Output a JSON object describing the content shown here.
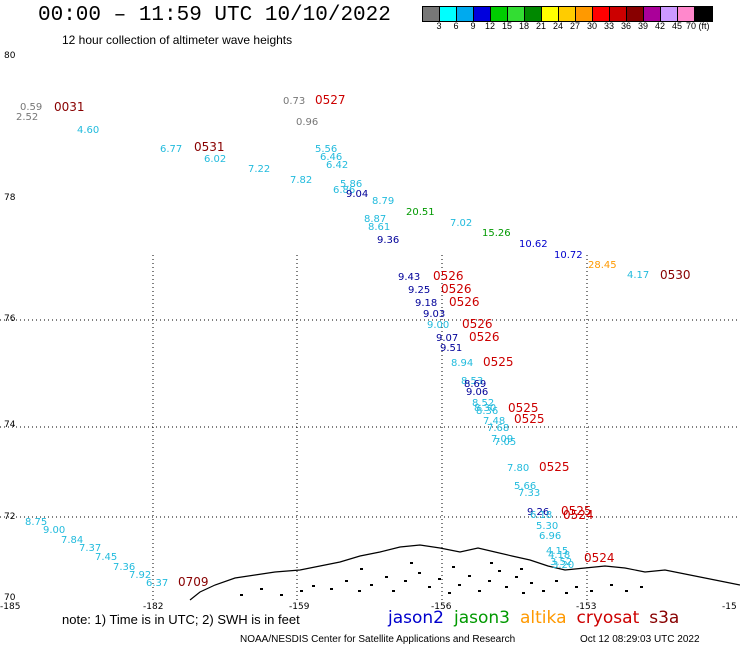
{
  "title": "00:00 – 11:59 UTC 10/10/2022",
  "subtitle": "12 hour collection of altimeter wave heights",
  "colorbar": {
    "colors": [
      "#777777",
      "#00ffff",
      "#00aaee",
      "#0000dd",
      "#00cc00",
      "#33dd33",
      "#008800",
      "#ffff00",
      "#ffcc00",
      "#ff9900",
      "#ff0000",
      "#cc0000",
      "#880000",
      "#aa0099",
      "#cc99ff",
      "#ff88cc",
      "#000000"
    ],
    "labels": [
      "3",
      "6",
      "9",
      "12",
      "15",
      "18",
      "21",
      "24",
      "27",
      "30",
      "33",
      "36",
      "39",
      "42",
      "45",
      "70 (ft)"
    ]
  },
  "map": {
    "lat_ticks": [
      "80",
      "78",
      "76",
      "74",
      "72",
      "70"
    ],
    "lon_ticks": [
      "-185",
      "-182",
      "-159",
      "-156",
      "-153",
      "-15"
    ]
  },
  "satellite_colors": {
    "jason2": "#0000cc",
    "jason3": "#009900",
    "altika": "#ff9900",
    "cryosat": "#cc0000",
    "s3a": "#880000",
    "other": "#777777",
    "light": "#22bbdd",
    "dark": "#000099"
  },
  "readings": [
    {
      "text": "0.59",
      "c": "other"
    },
    {
      "text": "0031",
      "c": "s3a"
    },
    {
      "text": "2.52",
      "c": "other"
    },
    {
      "text": "4.60",
      "c": "light"
    },
    {
      "text": "0.73",
      "c": "other"
    },
    {
      "text": "0527",
      "c": "cryosat"
    },
    {
      "text": "0.96",
      "c": "other"
    },
    {
      "text": "6.77",
      "c": "light"
    },
    {
      "text": "0531",
      "c": "s3a"
    },
    {
      "text": "6.02",
      "c": "light"
    },
    {
      "text": "7.22",
      "c": "light"
    },
    {
      "text": "5.56",
      "c": "light"
    },
    {
      "text": "6.46",
      "c": "light"
    },
    {
      "text": "6.42",
      "c": "light"
    },
    {
      "text": "7.82",
      "c": "light"
    },
    {
      "text": "5.86",
      "c": "light"
    },
    {
      "text": "6.86",
      "c": "light"
    },
    {
      "text": "9.04",
      "c": "dark"
    },
    {
      "text": "8.79",
      "c": "light"
    },
    {
      "text": "20.51",
      "c": "jason3"
    },
    {
      "text": "7.02",
      "c": "light"
    },
    {
      "text": "15.26",
      "c": "jason3"
    },
    {
      "text": "8.87",
      "c": "light"
    },
    {
      "text": "8.61",
      "c": "light"
    },
    {
      "text": "9.36",
      "c": "dark"
    },
    {
      "text": "10.62",
      "c": "jason2"
    },
    {
      "text": "10.72",
      "c": "jason2"
    },
    {
      "text": "28.45",
      "c": "altika"
    },
    {
      "text": "4.17",
      "c": "light"
    },
    {
      "text": "0530",
      "c": "s3a"
    },
    {
      "text": "9.43",
      "c": "dark"
    },
    {
      "text": "0526",
      "c": "cryosat"
    },
    {
      "text": "9.25",
      "c": "dark"
    },
    {
      "text": "0526",
      "c": "cryosat"
    },
    {
      "text": "9.18",
      "c": "dark"
    },
    {
      "text": "0526",
      "c": "cryosat"
    },
    {
      "text": "9.03",
      "c": "dark"
    },
    {
      "text": "9.00",
      "c": "light"
    },
    {
      "text": "0526",
      "c": "cryosat"
    },
    {
      "text": "9.07",
      "c": "dark"
    },
    {
      "text": "0526",
      "c": "cryosat"
    },
    {
      "text": "9.51",
      "c": "dark"
    },
    {
      "text": "8.94",
      "c": "light"
    },
    {
      "text": "0525",
      "c": "cryosat"
    },
    {
      "text": "8.53",
      "c": "light"
    },
    {
      "text": "8.69",
      "c": "dark"
    },
    {
      "text": "9.06",
      "c": "dark"
    },
    {
      "text": "8.52",
      "c": "light"
    },
    {
      "text": "8.30",
      "c": "light"
    },
    {
      "text": "8.36",
      "c": "light"
    },
    {
      "text": "0525",
      "c": "cryosat"
    },
    {
      "text": "0525",
      "c": "cryosat"
    },
    {
      "text": "7.48",
      "c": "light"
    },
    {
      "text": "7.68",
      "c": "light"
    },
    {
      "text": "7.09",
      "c": "light"
    },
    {
      "text": "7.05",
      "c": "light"
    },
    {
      "text": "7.80",
      "c": "light"
    },
    {
      "text": "0525",
      "c": "cryosat"
    },
    {
      "text": "5.66",
      "c": "light"
    },
    {
      "text": "7.33",
      "c": "light"
    },
    {
      "text": "9.26",
      "c": "dark"
    },
    {
      "text": "0525",
      "c": "cryosat"
    },
    {
      "text": "6.18",
      "c": "light"
    },
    {
      "text": "0524",
      "c": "cryosat"
    },
    {
      "text": "5.30",
      "c": "light"
    },
    {
      "text": "6.96",
      "c": "light"
    },
    {
      "text": "4.15",
      "c": "light"
    },
    {
      "text": "4.18",
      "c": "light"
    },
    {
      "text": "3.52",
      "c": "light"
    },
    {
      "text": "3.20",
      "c": "light"
    },
    {
      "text": "0524",
      "c": "cryosat"
    },
    {
      "text": "8.75",
      "c": "light"
    },
    {
      "text": "9.00",
      "c": "light"
    },
    {
      "text": "7.84",
      "c": "light"
    },
    {
      "text": "7.37",
      "c": "light"
    },
    {
      "text": "7.45",
      "c": "light"
    },
    {
      "text": "7.36",
      "c": "light"
    },
    {
      "text": "7.92",
      "c": "light"
    },
    {
      "text": "6.37",
      "c": "light"
    },
    {
      "text": "0709",
      "c": "s3a"
    }
  ],
  "note": "note: 1) Time is in UTC; 2) SWH is in feet",
  "legend": [
    {
      "label": "jason2",
      "color": "#0000cc"
    },
    {
      "label": "jason3",
      "color": "#009900"
    },
    {
      "label": "altika",
      "color": "#ff9900"
    },
    {
      "label": "cryosat",
      "color": "#cc0000"
    },
    {
      "label": "s3a",
      "color": "#880000"
    }
  ],
  "footer_left": "NOAA/NESDIS Center for Satellite Applications and Research",
  "footer_right": "Oct 12 08:29:03 UTC 2022"
}
